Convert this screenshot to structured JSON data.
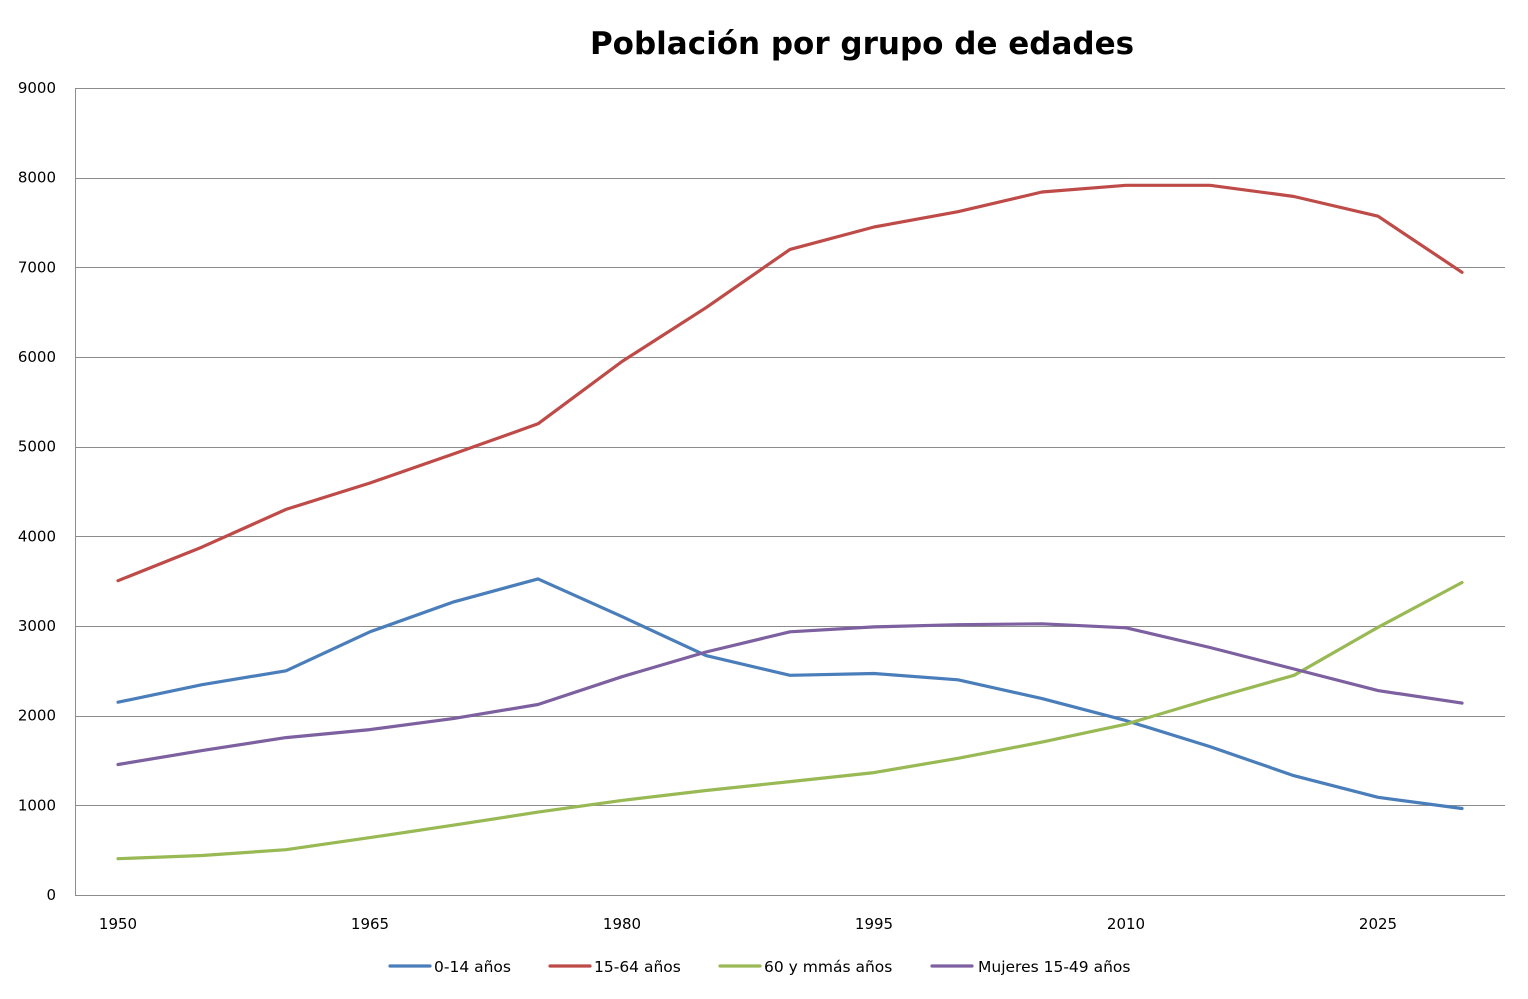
{
  "chart_data": {
    "type": "line",
    "title": "Población por grupo de edades",
    "xlabel": "",
    "ylabel": "",
    "x": [
      1950,
      1955,
      1960,
      1965,
      1970,
      1975,
      1980,
      1985,
      1990,
      1995,
      2000,
      2005,
      2010,
      2015,
      2020,
      2025,
      2030
    ],
    "x_tick_labels": [
      "1950",
      "1965",
      "1980",
      "1995",
      "2010",
      "2025"
    ],
    "x_tick_values": [
      1950,
      1965,
      1980,
      1995,
      2010,
      2025
    ],
    "ylim": [
      0,
      9000
    ],
    "y_ticks": [
      0,
      1000,
      2000,
      3000,
      4000,
      5000,
      6000,
      7000,
      8000,
      9000
    ],
    "y_tick_labels": [
      "0",
      "1000",
      "2000",
      "3000",
      "4000",
      "5000",
      "6000",
      "7000",
      "8000",
      "9000"
    ],
    "grid": true,
    "legend_position": "bottom",
    "series": [
      {
        "name": "0-14 años",
        "color": "#4a7ebb",
        "values": [
          2150,
          2345,
          2500,
          2935,
          3270,
          3525,
          3105,
          2670,
          2450,
          2470,
          2400,
          2190,
          1945,
          1655,
          1330,
          1090,
          965
        ]
      },
      {
        "name": "15-64 años",
        "color": "#be4b48",
        "values": [
          3505,
          3880,
          4300,
          4595,
          4920,
          5255,
          5950,
          6550,
          7200,
          7450,
          7620,
          7840,
          7915,
          7915,
          7790,
          7570,
          6945
        ]
      },
      {
        "name": "60 y mmás años",
        "color": "#98b954",
        "values": [
          405,
          440,
          505,
          640,
          780,
          925,
          1055,
          1165,
          1265,
          1365,
          1525,
          1705,
          1905,
          2185,
          2450,
          2985,
          3485
        ]
      },
      {
        "name": "Mujeres 15-49 años",
        "color": "#7d60a0",
        "values": [
          1455,
          1610,
          1755,
          1845,
          1970,
          2125,
          2435,
          2710,
          2935,
          2990,
          3015,
          3025,
          2980,
          2760,
          2520,
          2280,
          2140
        ]
      }
    ]
  }
}
